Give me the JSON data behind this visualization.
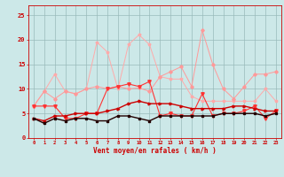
{
  "x": [
    0,
    1,
    2,
    3,
    4,
    5,
    6,
    7,
    8,
    9,
    10,
    11,
    12,
    13,
    14,
    15,
    16,
    17,
    18,
    19,
    20,
    21,
    22,
    23
  ],
  "line_pink_star": [
    6.5,
    9.5,
    13.0,
    9.5,
    9.0,
    10.0,
    19.5,
    17.5,
    10.0,
    19.0,
    21.0,
    19.0,
    12.5,
    12.0,
    12.0,
    8.5,
    7.5,
    7.5,
    7.5,
    7.5,
    7.5,
    7.5,
    10.0,
    7.5
  ],
  "line_pink_diamond": [
    6.5,
    9.5,
    8.0,
    9.5,
    9.0,
    10.0,
    10.5,
    10.0,
    10.5,
    10.0,
    10.2,
    9.5,
    12.5,
    13.5,
    14.5,
    10.5,
    22.0,
    15.0,
    10.0,
    8.0,
    10.5,
    13.0,
    13.0,
    13.5
  ],
  "line_red_tri": [
    6.5,
    6.5,
    6.5,
    4.0,
    4.0,
    5.0,
    5.0,
    10.0,
    10.5,
    11.0,
    10.5,
    11.5,
    4.5,
    5.0,
    4.5,
    4.5,
    9.0,
    4.5,
    5.0,
    5.0,
    5.5,
    6.5,
    4.0,
    5.5
  ],
  "line_dark_curve": [
    4.0,
    3.5,
    4.5,
    4.5,
    5.0,
    5.0,
    5.0,
    5.5,
    6.0,
    7.0,
    7.5,
    7.0,
    7.0,
    7.0,
    6.5,
    6.0,
    6.0,
    6.0,
    6.0,
    6.5,
    6.5,
    6.0,
    5.5,
    5.5
  ],
  "line_dark_sq": [
    4.0,
    3.0,
    4.0,
    3.5,
    4.0,
    4.0,
    3.5,
    3.5,
    4.5,
    4.5,
    4.0,
    3.5,
    4.5,
    4.5,
    4.5,
    4.5,
    4.5,
    4.5,
    5.0,
    5.0,
    5.0,
    5.0,
    4.5,
    5.0
  ],
  "color_pink_light": "#ffaaaa",
  "color_pink": "#ff9999",
  "color_red": "#ff3333",
  "color_dark_red": "#cc0000",
  "color_black": "#220000",
  "bg_color": "#cce8e8",
  "grid_color": "#99bbbb",
  "axis_color": "#cc0000",
  "xlabel": "Vent moyen/en rafales ( km/h )",
  "ylabel_ticks": [
    0,
    5,
    10,
    15,
    20,
    25
  ],
  "xlim": [
    -0.5,
    23.5
  ],
  "ylim": [
    0,
    27
  ]
}
